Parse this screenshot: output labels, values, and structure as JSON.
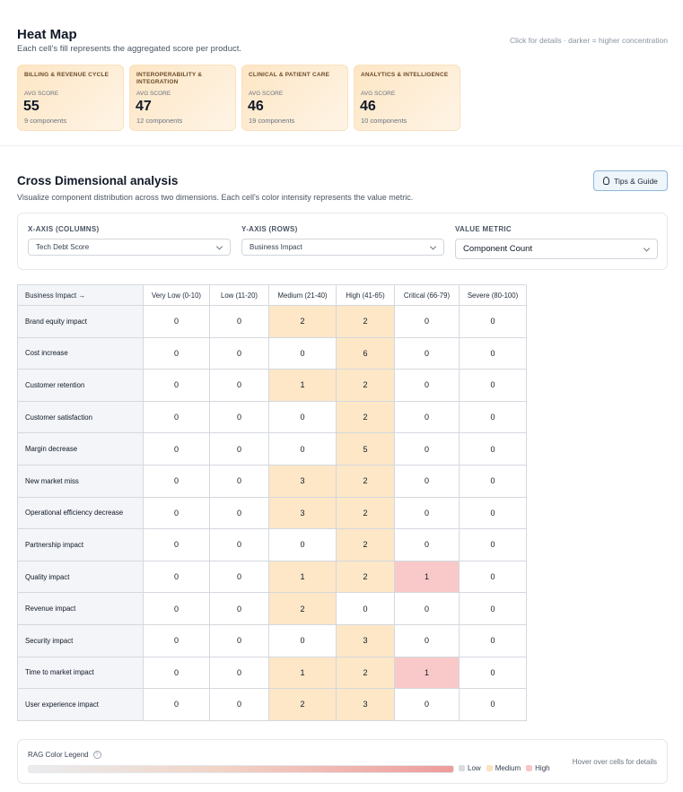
{
  "heatmap": {
    "title": "Heat Map",
    "subtitle": "Each cell's fill represents the aggregated score per product.",
    "hint": "Click for details · darker = higher concentration",
    "cards": [
      {
        "title": "BILLING & REVENUE CYCLE",
        "label": "AVG SCORE",
        "value": "55",
        "count": "9 components"
      },
      {
        "title": "INTEROPERABILITY & INTEGRATION",
        "label": "AVG SCORE",
        "value": "47",
        "count": "12 components"
      },
      {
        "title": "CLINICAL & PATIENT CARE",
        "label": "AVG SCORE",
        "value": "46",
        "count": "19 components"
      },
      {
        "title": "ANALYTICS & INTELLIGENCE",
        "label": "AVG SCORE",
        "value": "46",
        "count": "10 components"
      }
    ]
  },
  "cross": {
    "title": "Cross Dimensional analysis",
    "subtitle": "Visualize component distribution across two dimensions. Each cell's color intensity represents the value metric.",
    "tips_label": "Tips & Guide",
    "controls": {
      "x_label": "X-AXIS (COLUMNS)",
      "x_value": "Tech Debt Score",
      "y_label": "Y-AXIS (ROWS)",
      "y_value": "Business Impact",
      "metric_label": "VALUE METRIC",
      "metric_value": "Component Count"
    },
    "table": {
      "corner": "Business Impact →",
      "columns": [
        "Very Low (0-10)",
        "Low (11-20)",
        "Medium (21-40)",
        "High (41-65)",
        "Critical (66-79)",
        "Severe (80-100)"
      ],
      "rows": [
        {
          "label": "Brand equity impact",
          "values": [
            0,
            0,
            2,
            2,
            0,
            0
          ]
        },
        {
          "label": "Cost increase",
          "values": [
            0,
            0,
            0,
            6,
            0,
            0
          ]
        },
        {
          "label": "Customer retention",
          "values": [
            0,
            0,
            1,
            2,
            0,
            0
          ]
        },
        {
          "label": "Customer satisfaction",
          "values": [
            0,
            0,
            0,
            2,
            0,
            0
          ]
        },
        {
          "label": "Margin decrease",
          "values": [
            0,
            0,
            0,
            5,
            0,
            0
          ]
        },
        {
          "label": "New market miss",
          "values": [
            0,
            0,
            3,
            2,
            0,
            0
          ]
        },
        {
          "label": "Operational efficiency decrease",
          "values": [
            0,
            0,
            3,
            2,
            0,
            0
          ]
        },
        {
          "label": "Partnership impact",
          "values": [
            0,
            0,
            0,
            2,
            0,
            0
          ]
        },
        {
          "label": "Quality impact",
          "values": [
            0,
            0,
            1,
            2,
            1,
            0
          ]
        },
        {
          "label": "Revenue impact",
          "values": [
            0,
            0,
            2,
            0,
            0,
            0
          ]
        },
        {
          "label": "Security impact",
          "values": [
            0,
            0,
            0,
            3,
            0,
            0
          ]
        },
        {
          "label": "Time to market impact",
          "values": [
            0,
            0,
            1,
            2,
            1,
            0
          ]
        },
        {
          "label": "User experience impact",
          "values": [
            0,
            0,
            2,
            3,
            0,
            0
          ]
        }
      ]
    }
  },
  "legend": {
    "title": "RAG Color Legend",
    "items": [
      "Low",
      "Medium",
      "High"
    ],
    "colors": {
      "Low": "#d9dcdf",
      "Medium": "#fbe3bf",
      "High": "#f8c6c6"
    },
    "hint": "Hover over cells for details"
  }
}
